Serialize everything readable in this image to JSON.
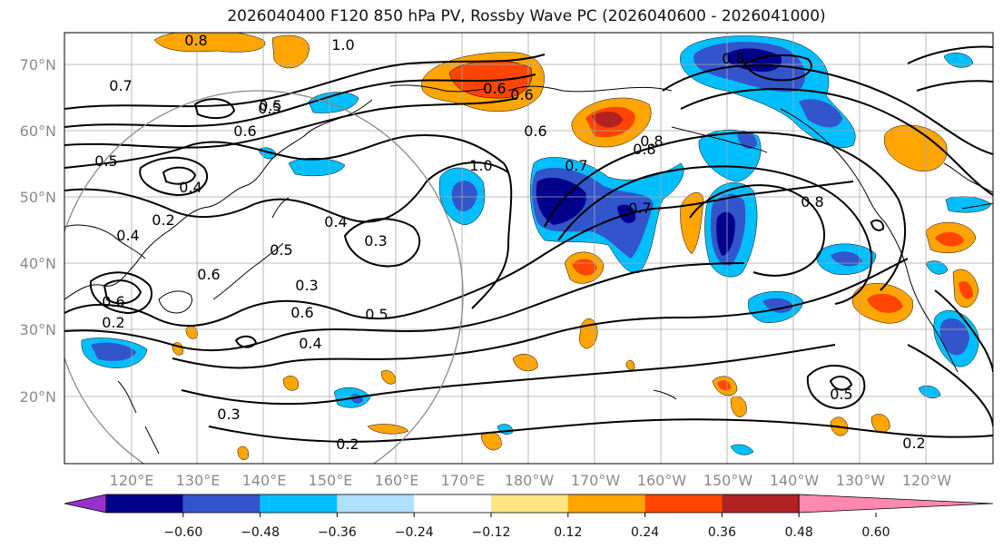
{
  "title": "2026040400 F120 850 hPa PV, Rossby Wave PC (2026040600 - 2026041000)",
  "lat_labels": [
    "70°N",
    "60°N",
    "50°N",
    "40°N",
    "30°N",
    "20°N"
  ],
  "lon_labels": [
    "120°E",
    "130°E",
    "140°E",
    "150°E",
    "160°E",
    "170°E",
    "180°W",
    "170°W",
    "160°W",
    "150°W",
    "140°W",
    "130°W",
    "120°W"
  ],
  "colorbar": {
    "ticks": [
      "−0.60",
      "−0.48",
      "−0.36",
      "−0.24",
      "−0.12",
      "0.12",
      "0.24",
      "0.36",
      "0.48",
      "0.60"
    ],
    "colors": [
      "#9932cc",
      "#00008b",
      "#3355cc",
      "#00bfff",
      "#b0e0ff",
      "#ffffff",
      "#ffe680",
      "#ffa500",
      "#ff4500",
      "#b22222",
      "#ff88b0"
    ]
  },
  "contour_labels": [
    "1.0",
    "0.8",
    "0.7",
    "0.6",
    "0.5",
    "0.6",
    "0.5",
    "0.4",
    "0.3",
    "0.3",
    "0.5",
    "0.4",
    "0.6",
    "0.3",
    "0.2",
    "0.4",
    "0.6",
    "0.5",
    "1.0",
    "0.6",
    "0.8",
    "0.7",
    "0.2",
    "0.8",
    "0.8",
    "0.5",
    "0.2",
    "0.4",
    "0.6",
    "0.2",
    "0.7",
    "0.8",
    "0.6",
    "0.5"
  ]
}
